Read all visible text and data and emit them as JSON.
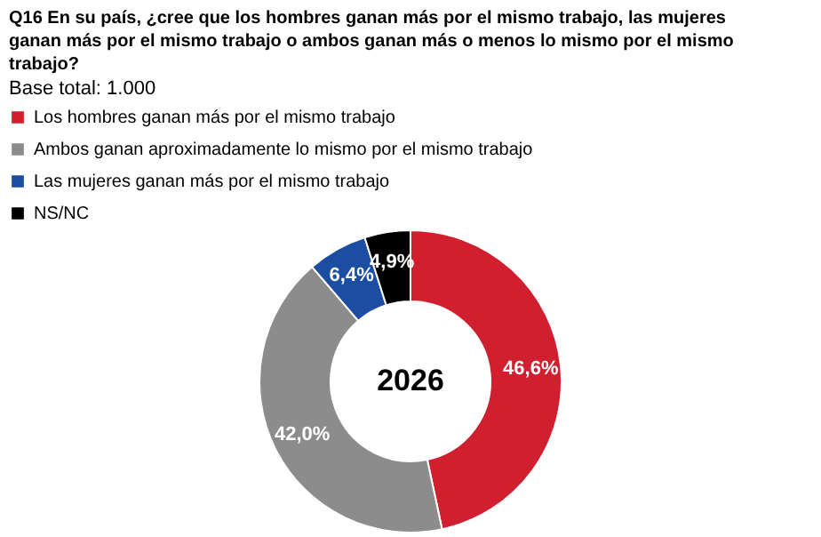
{
  "chart_data": {
    "type": "donut",
    "title": "Q16 En su país, ¿cree que los hombres ganan más  por el mismo trabajo, las mujeres ganan más por  el mismo trabajo o ambos ganan más o menos lo  mismo por el mismo trabajo?",
    "subtitle": "Base total: 1.000",
    "categories": [
      "Los hombres ganan más por el mismo trabajo",
      "Ambos ganan aproximadamente lo mismo por el mismo trabajo",
      "Las mujeres ganan más por el mismo trabajo",
      "NS/NC"
    ],
    "values": [
      46.6,
      42.0,
      6.4,
      4.9
    ],
    "colors": [
      "#d01f2e",
      "#8c8c8c",
      "#1b4ea0",
      "#000000"
    ],
    "value_labels": [
      "46,6%",
      "42,0%",
      "6,4%",
      "4,9%"
    ],
    "annotations": [
      "2026"
    ],
    "legend": "top left"
  }
}
